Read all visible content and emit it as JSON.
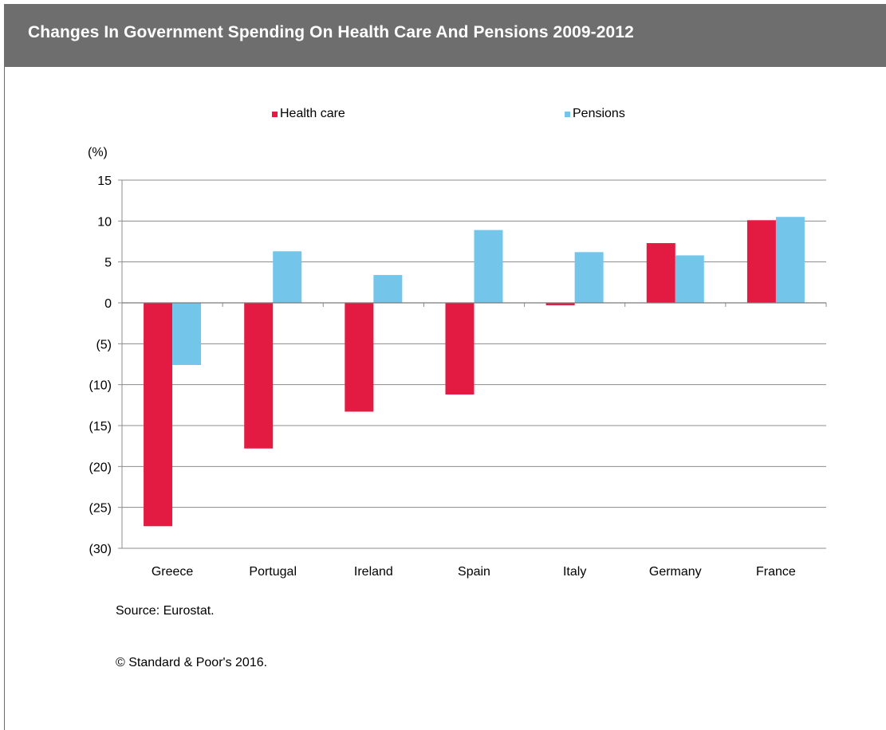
{
  "header": {
    "title": "Changes In Government Spending On Health Care And Pensions 2009-2012"
  },
  "legend": [
    {
      "label": "Health care",
      "color": "#e31a41"
    },
    {
      "label": "Pensions",
      "color": "#73c6ea"
    }
  ],
  "footer": {
    "source": "Source: Eurostat.",
    "copyright": "© Standard & Poor's 2016."
  },
  "chart_data": {
    "type": "bar",
    "title": "Changes In Government Spending On Health Care And Pensions 2009-2012",
    "ylabel": "(%)",
    "xlabel": "",
    "categories": [
      "Greece",
      "Portugal",
      "Ireland",
      "Spain",
      "Italy",
      "Germany",
      "France"
    ],
    "series": [
      {
        "name": "Health care",
        "color": "#e31a41",
        "values": [
          -27.3,
          -17.8,
          -13.3,
          -11.2,
          -0.3,
          7.3,
          10.1
        ]
      },
      {
        "name": "Pensions",
        "color": "#73c6ea",
        "values": [
          -7.6,
          6.3,
          3.4,
          8.9,
          6.2,
          5.8,
          10.5
        ]
      }
    ],
    "ylim": [
      -30,
      15
    ],
    "yticks": [
      15,
      10,
      5,
      0,
      -5,
      -10,
      -15,
      -20,
      -25,
      -30
    ],
    "ytick_labels": [
      "15",
      "10",
      "5",
      "0",
      "(5)",
      "(10)",
      "(15)",
      "(20)",
      "(25)",
      "(30)"
    ],
    "grid": true,
    "legend_position": "top"
  }
}
